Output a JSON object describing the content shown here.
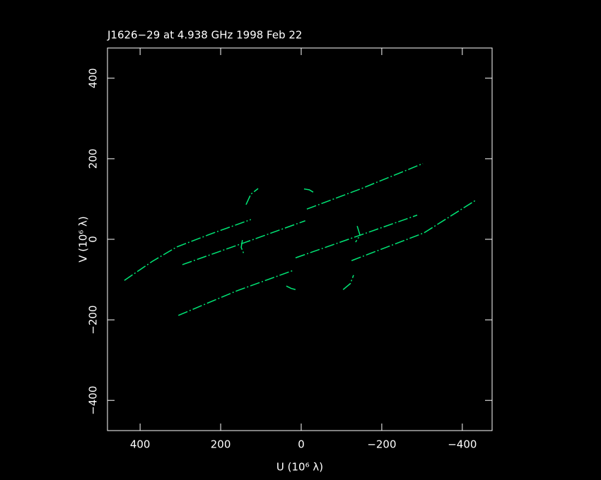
{
  "chart_data": {
    "type": "line",
    "title": "J1626−29 at 4.938 GHz 1998 Feb 22",
    "x_label": "U (10⁶ λ)",
    "y_label": "V (10⁶ λ)",
    "xlim": [
      481,
      -474
    ],
    "ylim": [
      -475,
      475
    ],
    "xticks": [
      400,
      200,
      0,
      {
        "value": -200,
        "label": "−200"
      },
      {
        "value": -400,
        "label": "−400"
      }
    ],
    "yticks": [
      {
        "value": -400,
        "label": "−400"
      },
      {
        "value": -200,
        "label": "−200"
      },
      0,
      200,
      400
    ],
    "series": [
      {
        "color": "#00e676",
        "x": [
          439,
          370,
          309,
          220,
          125
        ],
        "y": [
          -102,
          -55,
          -19,
          15,
          49
        ]
      },
      {
        "color": "#00e676",
        "x": [
          -14,
          -147,
          -302
        ],
        "y": [
          75,
          125,
          188
        ]
      },
      {
        "color": "#00e676",
        "x": [
          305,
          160,
          19
        ],
        "y": [
          -189,
          -128,
          -77
        ]
      },
      {
        "color": "#00e676",
        "x": [
          -125,
          -305,
          -435
        ],
        "y": [
          -53,
          16,
          98
        ]
      },
      {
        "color": "#00e676",
        "x": [
          295,
          140,
          -10
        ],
        "y": [
          -63,
          -8,
          46
        ]
      },
      {
        "color": "#00e676",
        "x": [
          14,
          -140,
          -288
        ],
        "y": [
          -46,
          8,
          60
        ]
      },
      {
        "color": "#00e676",
        "x": [
          137,
          125,
          107
        ],
        "y": [
          86,
          112,
          126
        ]
      },
      {
        "color": "#00e676",
        "x": [
          -7,
          -20,
          -30
        ],
        "y": [
          125,
          123,
          117
        ]
      },
      {
        "color": "#00e676",
        "x": [
          146,
          149,
          142
        ],
        "y": [
          -2,
          -20,
          -37
        ]
      },
      {
        "color": "#00e676",
        "x": [
          -139,
          -146,
          -135
        ],
        "y": [
          33,
          10,
          -7
        ]
      },
      {
        "color": "#00e676",
        "x": [
          37,
          25,
          14
        ],
        "y": [
          -116,
          -122,
          -125
        ]
      },
      {
        "color": "#00e676",
        "x": [
          -104,
          -122,
          -130
        ],
        "y": [
          -125,
          -110,
          -89
        ]
      }
    ]
  }
}
